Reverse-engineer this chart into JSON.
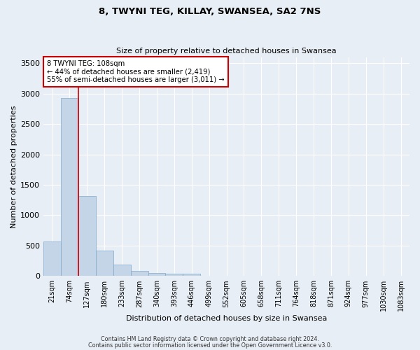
{
  "title1": "8, TWYNI TEG, KILLAY, SWANSEA, SA2 7NS",
  "title2": "Size of property relative to detached houses in Swansea",
  "xlabel": "Distribution of detached houses by size in Swansea",
  "ylabel": "Number of detached properties",
  "categories": [
    "21sqm",
    "74sqm",
    "127sqm",
    "180sqm",
    "233sqm",
    "287sqm",
    "340sqm",
    "393sqm",
    "446sqm",
    "499sqm",
    "552sqm",
    "605sqm",
    "658sqm",
    "711sqm",
    "764sqm",
    "818sqm",
    "871sqm",
    "924sqm",
    "977sqm",
    "1030sqm",
    "1083sqm"
  ],
  "values": [
    570,
    2930,
    1315,
    420,
    185,
    80,
    50,
    40,
    35,
    0,
    0,
    0,
    0,
    0,
    0,
    0,
    0,
    0,
    0,
    0,
    0
  ],
  "bar_color": "#c5d5e8",
  "bar_edge_color": "#7fa8c9",
  "vline_color": "#cc0000",
  "annotation_text": "8 TWYNI TEG: 108sqm\n← 44% of detached houses are smaller (2,419)\n55% of semi-detached houses are larger (3,011) →",
  "annotation_box_color": "#ffffff",
  "annotation_box_edge_color": "#cc0000",
  "ylim": [
    0,
    3600
  ],
  "yticks": [
    0,
    500,
    1000,
    1500,
    2000,
    2500,
    3000,
    3500
  ],
  "bg_color": "#e8eef5",
  "footer1": "Contains HM Land Registry data © Crown copyright and database right 2024.",
  "footer2": "Contains public sector information licensed under the Open Government Licence v3.0."
}
